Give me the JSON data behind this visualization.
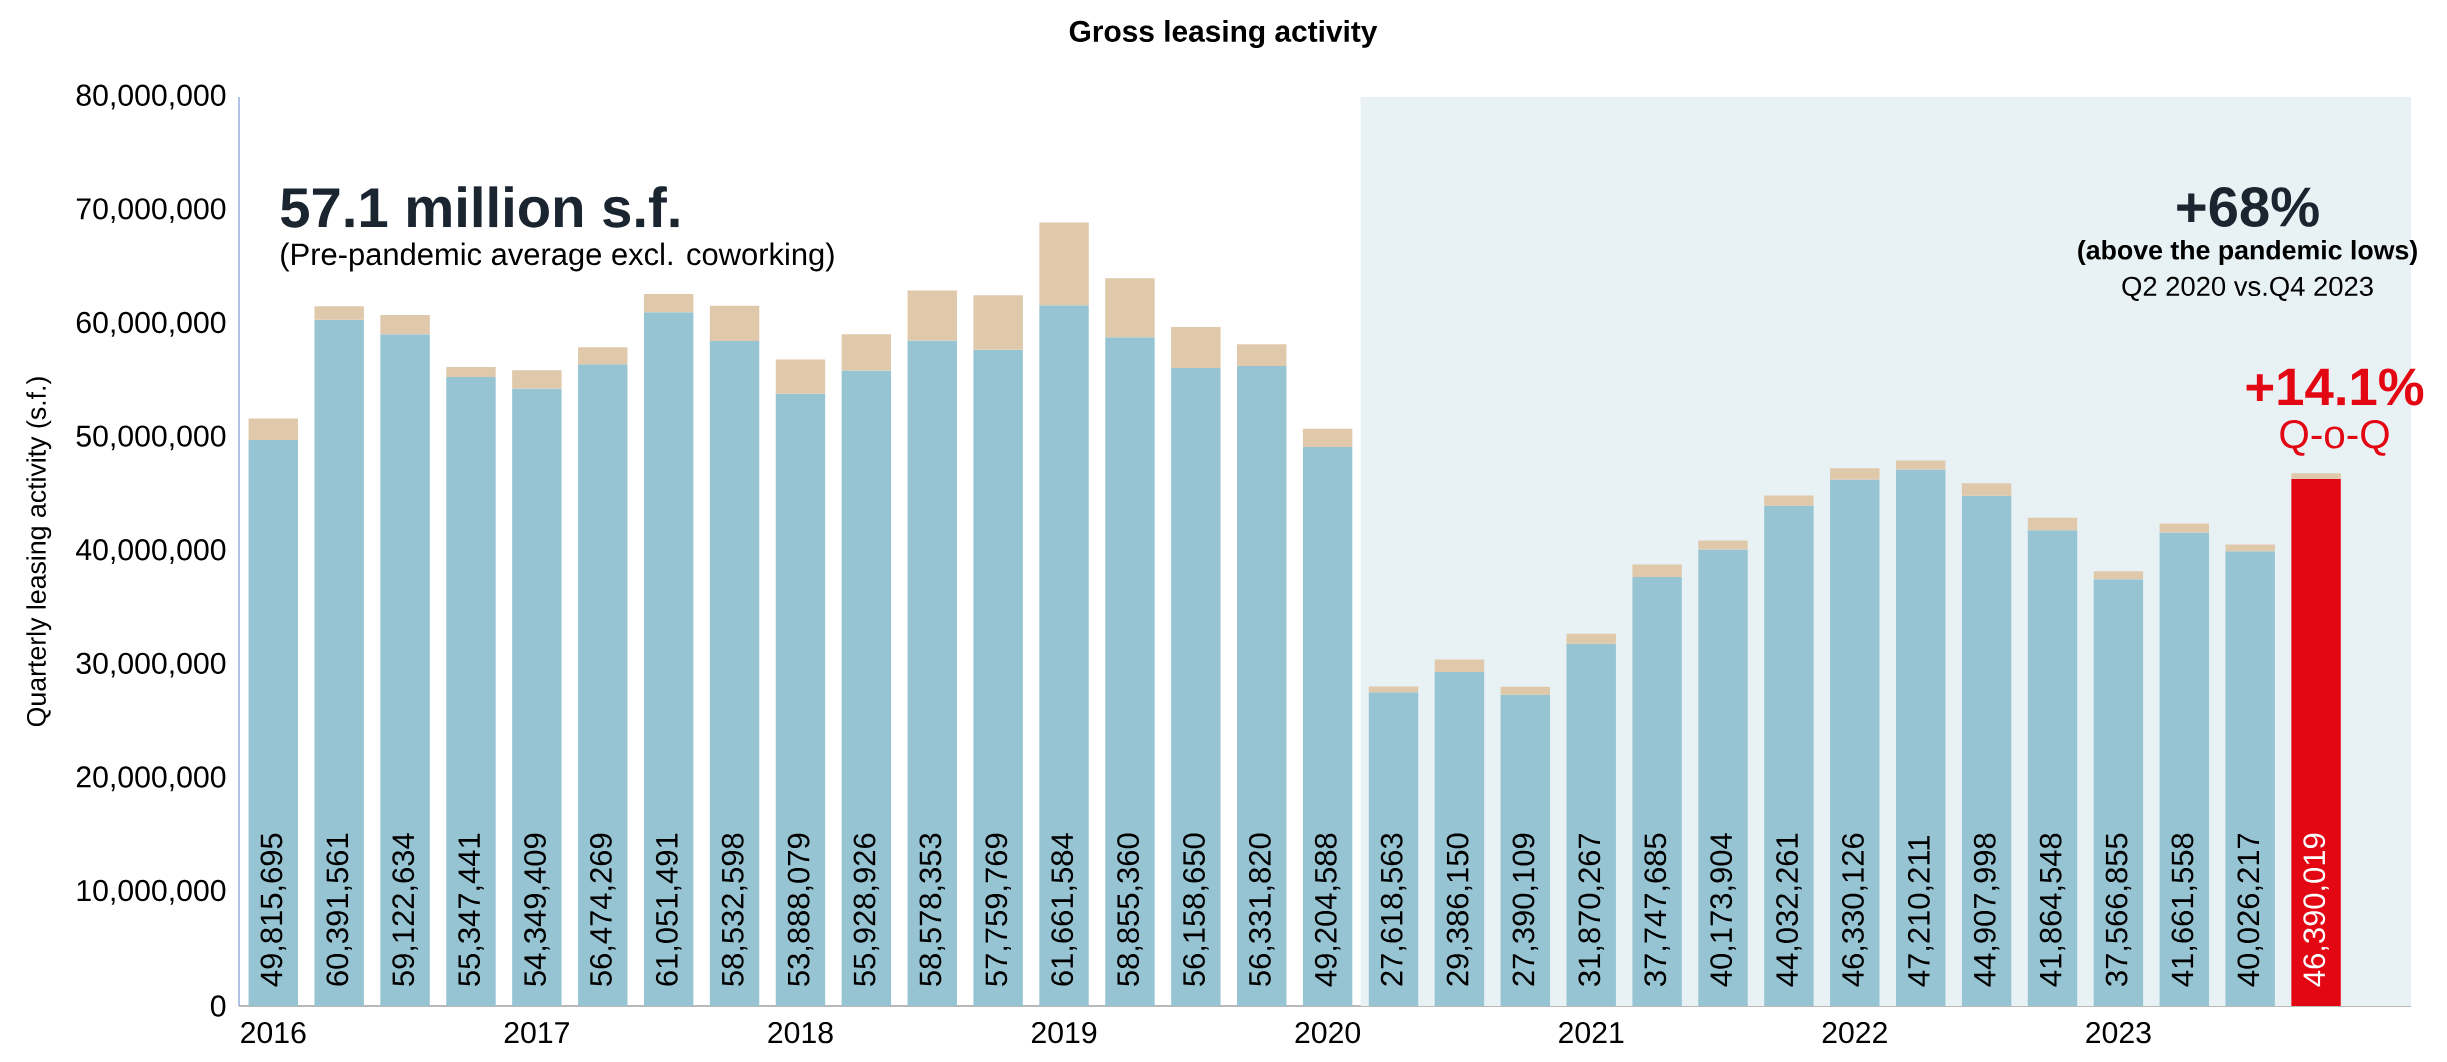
{
  "chart_data": {
    "type": "bar",
    "title": "Gross leasing activity",
    "ylabel": "Quarterly leasing activity (s.f.)",
    "stacked": true,
    "x": [
      2016,
      2016.25,
      2016.5,
      2016.75,
      2017,
      2017.25,
      2017.5,
      2017.75,
      2018,
      2018.25,
      2018.5,
      2018.75,
      2019,
      2019.25,
      2019.5,
      2019.75,
      2020,
      2020.25,
      2020.5,
      2020.75,
      2021,
      2021.25,
      2021.5,
      2021.75,
      2022,
      2022.25,
      2022.5,
      2022.75,
      2023,
      2023.25,
      2023.5,
      2023.75
    ],
    "xlim": [
      2015.87,
      2024.11
    ],
    "xticks": [
      2016,
      2017,
      2018,
      2019,
      2020,
      2021,
      2022,
      2023
    ],
    "ylim": [
      0,
      80000000
    ],
    "yticks": [
      0,
      {
        "value": 10000000,
        "label": "10,000,000"
      },
      {
        "value": 20000000,
        "label": "20,000,000"
      },
      {
        "value": 30000000,
        "label": "30,000,000"
      },
      {
        "value": 40000000,
        "label": "40,000,000"
      },
      {
        "value": 50000000,
        "label": "50,000,000"
      },
      {
        "value": 60000000,
        "label": "60,000,000"
      },
      {
        "value": 70000000,
        "label": "70,000,000"
      },
      {
        "value": 80000000,
        "label": "80,000,000"
      }
    ],
    "series": [
      {
        "colors": [
          "#97c4d3",
          "#97c4d3",
          "#97c4d3",
          "#97c4d3",
          "#97c4d3",
          "#97c4d3",
          "#97c4d3",
          "#97c4d3",
          "#97c4d3",
          "#97c4d3",
          "#97c4d3",
          "#97c4d3",
          "#97c4d3",
          "#97c4d3",
          "#97c4d3",
          "#97c4d3",
          "#97c4d3",
          "#97c4d3",
          "#97c4d3",
          "#97c4d3",
          "#97c4d3",
          "#97c4d3",
          "#97c4d3",
          "#97c4d3",
          "#97c4d3",
          "#97c4d3",
          "#97c4d3",
          "#97c4d3",
          "#97c4d3",
          "#97c4d3",
          "#97c4d3",
          "#e30613"
        ],
        "values": [
          49815695,
          60391561,
          59122634,
          55347441,
          54349409,
          56474269,
          61051491,
          58532598,
          53888079,
          55928926,
          58578353,
          57759769,
          61661584,
          58855360,
          56158650,
          56331820,
          49204588,
          27618563,
          29386150,
          27390109,
          31870267,
          37747685,
          40173904,
          44032261,
          46330126,
          47210211,
          44907998,
          41864548,
          37566855,
          41661558,
          40026217,
          46390019
        ],
        "value_labels": [
          "49,815,695",
          "60,391,561",
          "59,122,634",
          "55,347,441",
          "54,349,409",
          "56,474,269",
          "61,051,491",
          "58,532,598",
          "53,888,079",
          "55,928,926",
          "58,578,353",
          "57,759,769",
          "61,661,584",
          "58,855,360",
          "56,158,650",
          "56,331,820",
          "49,204,588",
          "27,618,563",
          "29,386,150",
          "27,390,109",
          "31,870,267",
          "37,747,685",
          "40,173,904",
          "44,032,261",
          "46,330,126",
          "47,210,211",
          "44,907,998",
          "41,864,548",
          "37,566,855",
          "41,661,558",
          "40,026,217",
          "46,390,019"
        ]
      },
      {
        "color": "#e0c8ab",
        "values": [
          1900000,
          1200000,
          1700000,
          900000,
          1600000,
          1500000,
          1600000,
          3100000,
          3000000,
          3200000,
          4400000,
          4800000,
          7300000,
          5200000,
          3600000,
          1900000,
          1600000,
          500000,
          1100000,
          700000,
          900000,
          1100000,
          800000,
          900000,
          1000000,
          800000,
          1100000,
          1100000,
          700000,
          800000,
          600000,
          500000
        ]
      }
    ],
    "bands": [
      {
        "axis": "x",
        "from": 2020.125,
        "to": 2024.11,
        "color": "#e8f2f5"
      }
    ],
    "annotations": [
      "57.1 million s.f.",
      "(Pre-pandemic average excl. coworking)",
      "+68%",
      "(above the pandemic lows)",
      "Q2 2020 vs.Q4 2023",
      "+14.1%",
      "Q-o-Q"
    ]
  }
}
